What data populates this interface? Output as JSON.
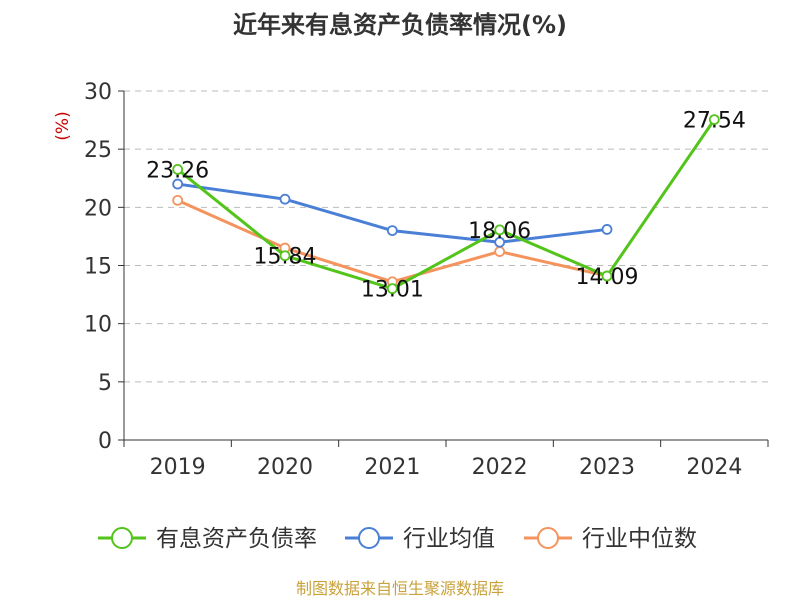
{
  "chart_data": {
    "type": "line",
    "title": "近年来有息资产负债率情况(%)",
    "ylabel": "(%)",
    "categories": [
      "2019",
      "2020",
      "2021",
      "2022",
      "2023",
      "2024"
    ],
    "ylim": [
      0,
      30
    ],
    "yticks": [
      "0",
      "5",
      "10",
      "15",
      "20",
      "25",
      "30"
    ],
    "grid": true,
    "legend_position": "bottom",
    "series": [
      {
        "name": "有息资产负债率",
        "color": "#52c41a",
        "values": [
          23.26,
          15.84,
          13.01,
          18.06,
          14.09,
          27.54
        ],
        "labels": [
          "23.26",
          "15.84",
          "13.01",
          "18.06",
          "14.09",
          "27.54"
        ]
      },
      {
        "name": "行业均值",
        "color": "#4a7fd6",
        "values": [
          22.0,
          20.7,
          18.0,
          17.0,
          18.1,
          null
        ]
      },
      {
        "name": "行业中位数",
        "color": "#f5935c",
        "values": [
          20.6,
          16.5,
          13.6,
          16.2,
          14.1,
          null
        ]
      }
    ]
  },
  "source_text": "制图数据来自恒生聚源数据库",
  "colors": {
    "axis": "#333333",
    "grid": "#bbbbbb",
    "unit_label": "#cc0000",
    "source_text": "#c9a23b"
  }
}
